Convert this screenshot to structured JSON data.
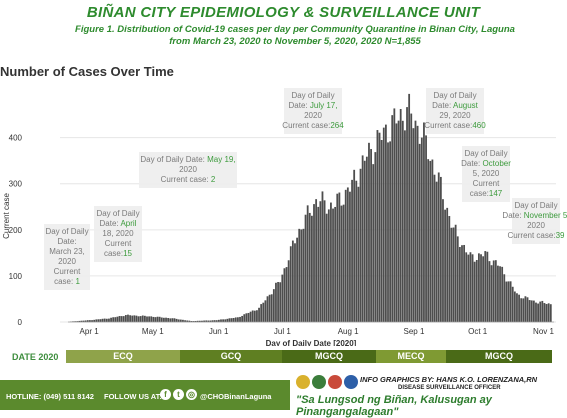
{
  "header": {
    "title": "BIÑAN CITY EPIDEMIOLOGY & SURVEILLANCE UNIT",
    "subtitle_line1": "Figure 1. Distribution of Covid-19  cases per day per Community Quarantine in Binan City, Laguna",
    "subtitle_line2": "from March 23, 2020 to November 5, 2020, 2020 N=1,855"
  },
  "chart_data": {
    "type": "bar",
    "title": "Number of Cases Over Time",
    "xlabel": "Day of Daily Date [2020]",
    "ylabel": "Current case",
    "ylim": [
      0,
      460
    ],
    "yticks": [
      0,
      100,
      200,
      300,
      400
    ],
    "xticks": [
      "Apr 1",
      "May 1",
      "Jun 1",
      "Jul 1",
      "Aug 1",
      "Sep 1",
      "Oct 1",
      "Nov 1"
    ],
    "x_start": "2020-03-23",
    "x_end": "2020-11-05",
    "grid": "horizontal",
    "color": "#4d4d4d",
    "anchors": [
      [
        "2020-03-23",
        1
      ],
      [
        "2020-04-01",
        4
      ],
      [
        "2020-04-10",
        8
      ],
      [
        "2020-04-18",
        15
      ],
      [
        "2020-04-30",
        12
      ],
      [
        "2020-05-10",
        8
      ],
      [
        "2020-05-19",
        2
      ],
      [
        "2020-05-31",
        4
      ],
      [
        "2020-06-10",
        10
      ],
      [
        "2020-06-20",
        30
      ],
      [
        "2020-06-30",
        90
      ],
      [
        "2020-07-08",
        190
      ],
      [
        "2020-07-17",
        264
      ],
      [
        "2020-07-25",
        250
      ],
      [
        "2020-08-02",
        290
      ],
      [
        "2020-08-10",
        360
      ],
      [
        "2020-08-18",
        410
      ],
      [
        "2020-08-29",
        460
      ],
      [
        "2020-09-05",
        410
      ],
      [
        "2020-09-12",
        320
      ],
      [
        "2020-09-20",
        200
      ],
      [
        "2020-09-28",
        140
      ],
      [
        "2020-10-05",
        147
      ],
      [
        "2020-10-12",
        120
      ],
      [
        "2020-10-20",
        60
      ],
      [
        "2020-10-28",
        45
      ],
      [
        "2020-11-05",
        39
      ]
    ],
    "annotations": [
      {
        "lines": [
          "Day of Daily",
          "Date:",
          "March 23,",
          "2020",
          "Current",
          "case: "
        ],
        "value": "1",
        "date": "2020-03-23"
      },
      {
        "lines": [
          "Day of Daily",
          "Date: ",
          "18, 2020",
          "Current",
          "case:"
        ],
        "value": "15",
        "value_highlight": "April",
        "date": "2020-04-18"
      },
      {
        "lines": [
          "Day of Daily Date: ",
          "2020",
          "Current case: "
        ],
        "value": "2",
        "value_highlight": "May 19,",
        "date": "2020-05-19"
      },
      {
        "lines": [
          "Day of Daily",
          "Date: ",
          "2020",
          "Current case:"
        ],
        "value": "264",
        "value_highlight": "July 17,",
        "date": "2020-07-17"
      },
      {
        "lines": [
          "Day of Daily",
          "Date: ",
          "29, 2020",
          "Current case:"
        ],
        "value": "460",
        "value_highlight": "August",
        "date": "2020-08-29"
      },
      {
        "lines": [
          "Day of Daily",
          "Date: ",
          "5, 2020",
          "Current",
          "case:"
        ],
        "value": "147",
        "value_highlight": "October",
        "date": "2020-10-05"
      },
      {
        "lines": [
          "Day of Daily",
          "Date: ",
          "2020",
          "Current case:"
        ],
        "value": "39",
        "value_highlight": "November 5,",
        "date": "2020-11-05"
      }
    ]
  },
  "timeline": {
    "label": "DATE 2020",
    "phases": [
      {
        "name": "ECQ",
        "color": "#8fa34a"
      },
      {
        "name": "GCQ",
        "color": "#5f7f22"
      },
      {
        "name": "MGCQ",
        "color": "#4a6a17"
      },
      {
        "name": "MECQ",
        "color": "#7f9a33"
      },
      {
        "name": "MGCQ",
        "color": "#4a6a17"
      }
    ]
  },
  "footer": {
    "hotline": "HOTLINE: (049) 511 8142",
    "visit": "FOLLOW US AT:",
    "handle": "@CHOBinanLaguna",
    "social_icons": [
      "facebook-icon",
      "twitter-icon",
      "instagram-icon"
    ],
    "credit": "INFO GRAPHICS BY: HANS K.O. LORENZANA,RN",
    "credit_sub": "DISEASE SURVEILLANCE OFFICER",
    "slogan": "\"Sa Lungsod ng Biñan, Kalusugan ay Pinangangalagaan\""
  }
}
